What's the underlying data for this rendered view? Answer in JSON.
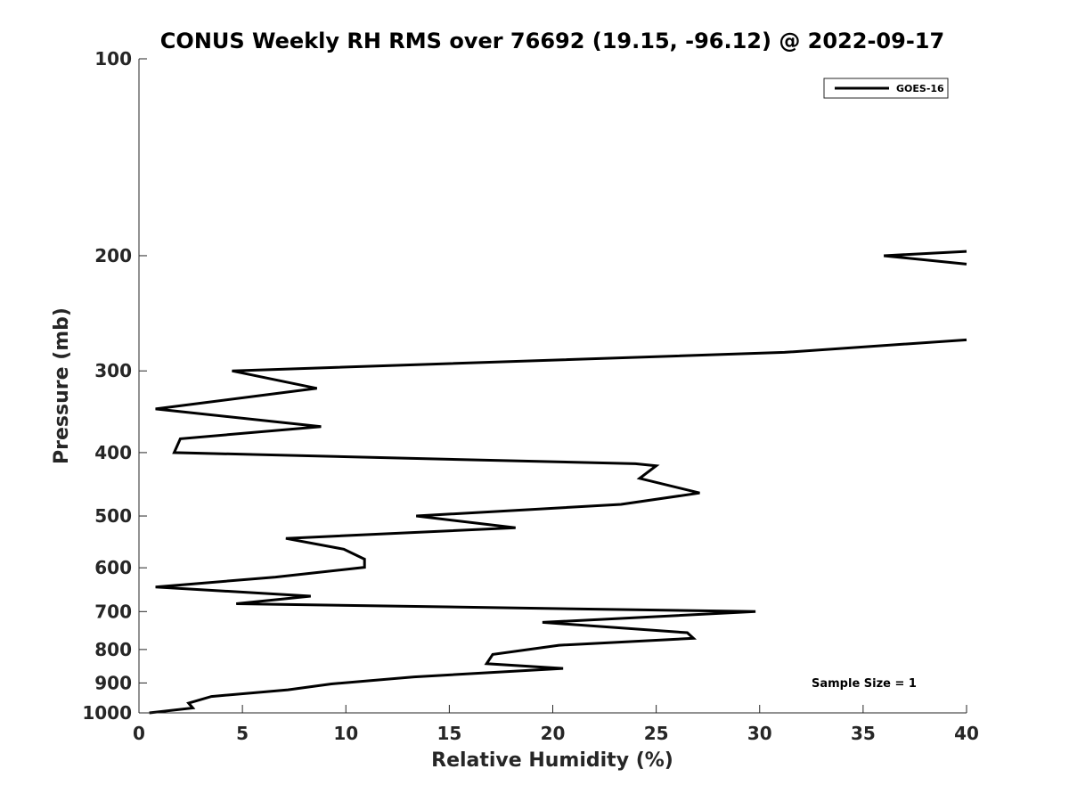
{
  "chart_data": {
    "type": "line",
    "title": "CONUS Weekly RH RMS over 76692 (19.15, -96.12) @ 2022-09-17",
    "xlabel": "Relative Humidity (%)",
    "ylabel": "Pressure (mb)",
    "xlim": [
      0,
      40
    ],
    "ylim": [
      1000,
      100
    ],
    "y_scale": "log",
    "x_ticks": [
      0,
      5,
      10,
      15,
      20,
      25,
      30,
      35,
      40
    ],
    "y_ticks": [
      100,
      200,
      300,
      400,
      500,
      600,
      700,
      800,
      900,
      1000
    ],
    "grid": false,
    "legend_position": "top-right",
    "annotation": "Sample Size = 1",
    "series": [
      {
        "name": "GOES-16",
        "color": "#000000",
        "points": [
          [
            36,
            200
          ],
          [
            40,
            197
          ],
          null,
          [
            36,
            200
          ],
          [
            40,
            206
          ],
          null,
          [
            40,
            269
          ],
          [
            31.2,
            281
          ],
          [
            4.5,
            300
          ],
          [
            8.6,
            319
          ],
          [
            0.8,
            343
          ],
          [
            8.8,
            365
          ],
          [
            2.0,
            381
          ],
          [
            1.7,
            400
          ],
          [
            24.0,
            416
          ],
          [
            25.0,
            419
          ],
          [
            24.2,
            438
          ],
          [
            27.1,
            461
          ],
          [
            23.3,
            480
          ],
          [
            13.4,
            500
          ],
          [
            18.2,
            521
          ],
          [
            7.1,
            541
          ],
          [
            9.9,
            562
          ],
          [
            10.9,
            582
          ],
          [
            10.9,
            599
          ],
          [
            6.6,
            620
          ],
          [
            0.8,
            642
          ],
          [
            8.3,
            663
          ],
          [
            4.7,
            681
          ],
          [
            29.8,
            700
          ],
          [
            19.5,
            727
          ],
          [
            26.5,
            754
          ],
          [
            26.8,
            769
          ],
          [
            20.3,
            788
          ],
          [
            17.1,
            814
          ],
          [
            16.8,
            841
          ],
          [
            20.5,
            855
          ],
          [
            13.3,
            881
          ],
          [
            9.3,
            903
          ],
          [
            7.2,
            922
          ],
          [
            3.5,
            944
          ],
          [
            2.4,
            966
          ],
          [
            2.6,
            983
          ],
          [
            0.5,
            1000
          ]
        ]
      }
    ]
  }
}
